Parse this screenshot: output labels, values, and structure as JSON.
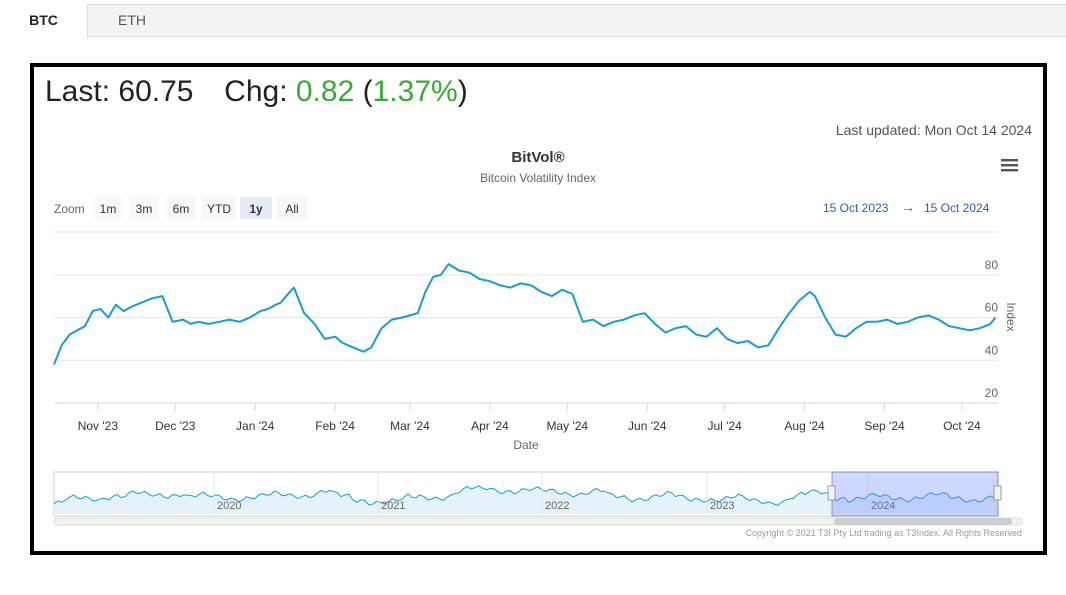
{
  "tabs": [
    {
      "label": "BTC",
      "active": true
    },
    {
      "label": "ETH",
      "active": false
    }
  ],
  "quote": {
    "last_label": "Last:",
    "last_value": "60.75",
    "chg_label": "Chg:",
    "chg_value": "0.82",
    "chg_pct": "1.37%",
    "open_paren": "(",
    "close_paren": ")",
    "positive_color": "#3aa935"
  },
  "last_updated": "Last updated: Mon Oct 14 2024",
  "chart_data": {
    "type": "line",
    "title": "BitVol®",
    "subtitle": "Bitcoin Volatility Index",
    "xlabel": "Date",
    "ylabel": "Index",
    "xlim": [
      "2023-10-15",
      "2024-10-15"
    ],
    "ylim": [
      20,
      100
    ],
    "yticks": [
      20,
      40,
      60,
      80
    ],
    "xticks": [
      {
        "date": "2023-11-01",
        "label": "Nov '23"
      },
      {
        "date": "2023-12-01",
        "label": "Dec '23"
      },
      {
        "date": "2024-01-01",
        "label": "Jan '24"
      },
      {
        "date": "2024-02-01",
        "label": "Feb '24"
      },
      {
        "date": "2024-03-01",
        "label": "Mar '24"
      },
      {
        "date": "2024-04-01",
        "label": "Apr '24"
      },
      {
        "date": "2024-05-01",
        "label": "May '24"
      },
      {
        "date": "2024-06-01",
        "label": "Jun '24"
      },
      {
        "date": "2024-07-01",
        "label": "Jul '24"
      },
      {
        "date": "2024-08-01",
        "label": "Aug '24"
      },
      {
        "date": "2024-09-01",
        "label": "Sep '24"
      },
      {
        "date": "2024-10-01",
        "label": "Oct '24"
      }
    ],
    "grid": true,
    "line_color": "#1a9bd7",
    "series": [
      {
        "x": [
          "2023-10-15",
          "2023-10-18",
          "2023-10-21",
          "2023-10-24",
          "2023-10-27",
          "2023-10-30",
          "2023-11-02",
          "2023-11-05",
          "2023-11-08",
          "2023-11-11",
          "2023-11-14",
          "2023-11-18",
          "2023-11-22",
          "2023-11-26",
          "2023-11-30",
          "2023-12-04",
          "2023-12-07",
          "2023-12-10",
          "2023-12-14",
          "2023-12-18",
          "2023-12-22",
          "2023-12-26",
          "2023-12-30",
          "2024-01-03",
          "2024-01-06",
          "2024-01-09",
          "2024-01-11",
          "2024-01-13",
          "2024-01-16",
          "2024-01-20",
          "2024-01-24",
          "2024-01-28",
          "2024-02-01",
          "2024-02-04",
          "2024-02-08",
          "2024-02-12",
          "2024-02-15",
          "2024-02-19",
          "2024-02-23",
          "2024-02-27",
          "2024-03-01",
          "2024-03-04",
          "2024-03-07",
          "2024-03-10",
          "2024-03-13",
          "2024-03-16",
          "2024-03-20",
          "2024-03-24",
          "2024-03-28",
          "2024-04-01",
          "2024-04-05",
          "2024-04-09",
          "2024-04-13",
          "2024-04-17",
          "2024-04-21",
          "2024-04-25",
          "2024-04-29",
          "2024-05-03",
          "2024-05-07",
          "2024-05-11",
          "2024-05-15",
          "2024-05-19",
          "2024-05-23",
          "2024-05-27",
          "2024-05-31",
          "2024-06-04",
          "2024-06-08",
          "2024-06-12",
          "2024-06-16",
          "2024-06-20",
          "2024-06-24",
          "2024-06-28",
          "2024-07-02",
          "2024-07-06",
          "2024-07-10",
          "2024-07-14",
          "2024-07-18",
          "2024-07-22",
          "2024-07-26",
          "2024-07-30",
          "2024-08-03",
          "2024-08-05",
          "2024-08-09",
          "2024-08-13",
          "2024-08-17",
          "2024-08-21",
          "2024-08-25",
          "2024-08-29",
          "2024-09-02",
          "2024-09-06",
          "2024-09-10",
          "2024-09-14",
          "2024-09-18",
          "2024-09-22",
          "2024-09-26",
          "2024-09-30",
          "2024-10-04",
          "2024-10-08",
          "2024-10-12",
          "2024-10-14"
        ],
        "y": [
          38,
          47,
          52,
          54,
          56,
          63,
          64,
          60,
          66,
          63,
          65,
          67,
          69,
          70,
          58,
          59,
          57,
          58,
          57,
          58,
          59,
          58,
          60,
          63,
          64,
          66,
          67,
          70,
          74,
          62,
          57,
          50,
          51,
          48,
          46,
          44,
          46,
          55,
          59,
          60,
          61,
          62,
          72,
          79,
          80,
          85,
          82,
          81,
          78,
          77,
          75,
          74,
          76,
          75,
          72,
          70,
          73,
          71,
          58,
          59,
          56,
          58,
          59,
          61,
          62,
          57,
          53,
          55,
          56,
          52,
          51,
          55,
          50,
          48,
          49,
          46,
          47,
          55,
          62,
          68,
          72,
          70,
          60,
          52,
          51,
          55,
          58,
          58,
          59,
          57,
          58,
          60,
          61,
          59,
          56,
          55,
          54,
          55,
          57,
          60
        ]
      }
    ],
    "navigator": {
      "labels": [
        "2020",
        "2021",
        "2022",
        "2023",
        "2024"
      ]
    }
  },
  "zoom": {
    "label": "Zoom",
    "buttons": [
      "1m",
      "3m",
      "6m",
      "YTD",
      "1y",
      "All"
    ],
    "active": "1y"
  },
  "range": {
    "from": "15 Oct 2023",
    "arrow": "→",
    "to": "15 Oct 2024"
  },
  "credits": "Copyright © 2021 T3I Pty Ltd trading as T3Index. All Rights Reserved"
}
